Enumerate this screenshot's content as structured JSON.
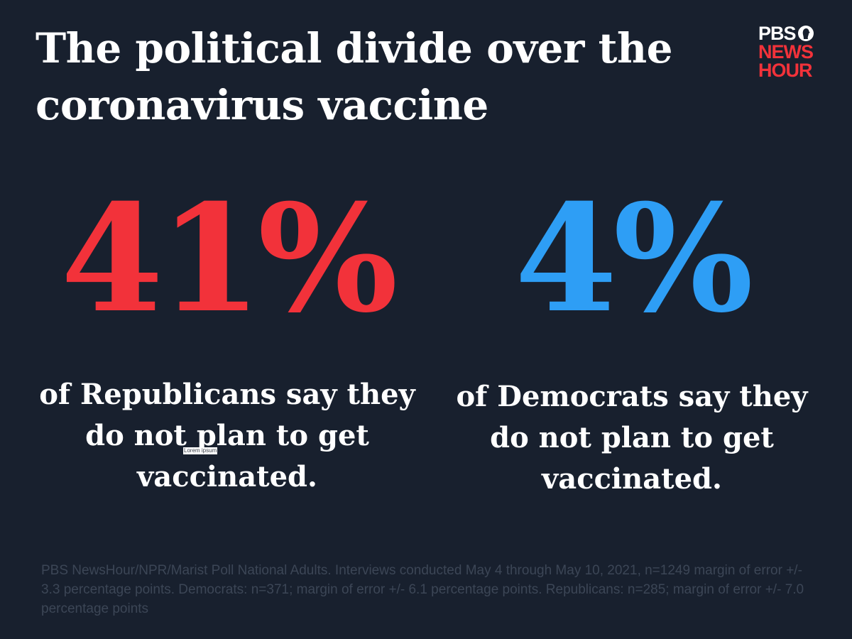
{
  "title": "The political divide over the coronavirus vaccine",
  "logo": {
    "line1": "PBS",
    "line2": "NEWS",
    "line3": "HOUR",
    "icon": "pbs-head-icon"
  },
  "republicans": {
    "value": "41%",
    "description": "of Republicans say they do not plan to get vaccinated.",
    "color": "#f2323a"
  },
  "democrats": {
    "value": "4%",
    "description": "of Democrats say they do not plan to get vaccinated.",
    "color": "#2e9ef5"
  },
  "overlay_label": "Lorem ipsum",
  "source": "PBS NewsHour/NPR/Marist Poll National Adults. Interviews conducted May 4 through May 10, 2021, n=1249 margin of error +/- 3.3 percentage points. Democrats: n=371; margin of error +/- 6.1 percentage points. Republicans: n=285; margin of error +/- 7.0 percentage points",
  "colors": {
    "background": "#18202e",
    "text": "#ffffff",
    "source_text": "#3c4656"
  }
}
